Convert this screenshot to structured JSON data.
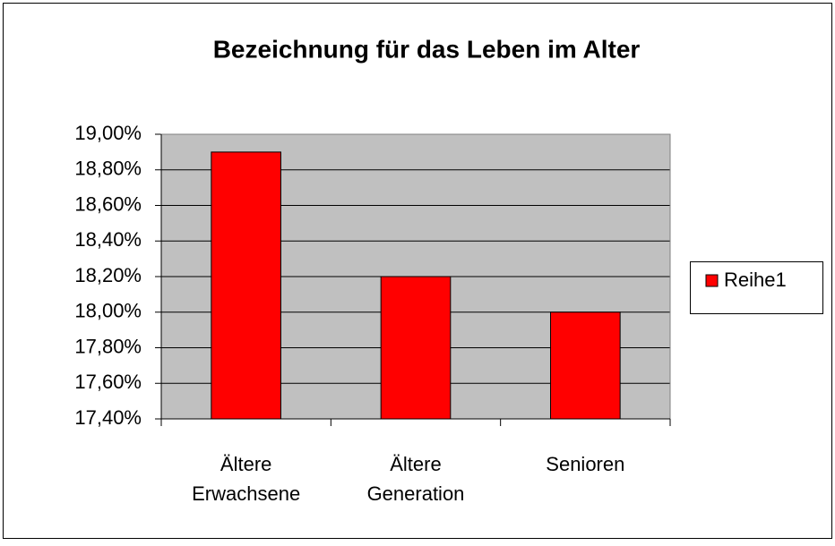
{
  "chart_data": {
    "type": "bar",
    "title": "Bezeichnung für das Leben im Alter",
    "categories": [
      "Ältere Erwachsene",
      "Ältere Generation",
      "Senioren"
    ],
    "series": [
      {
        "name": "Reihe1",
        "color": "#ff0000",
        "values": [
          18.9,
          18.2,
          18.0
        ]
      }
    ],
    "ylim": [
      17.4,
      19.0
    ],
    "yticks": [
      {
        "value": 17.4,
        "label": "17,40%"
      },
      {
        "value": 17.6,
        "label": "17,60%"
      },
      {
        "value": 17.8,
        "label": "17,80%"
      },
      {
        "value": 18.0,
        "label": "18,00%"
      },
      {
        "value": 18.2,
        "label": "18,20%"
      },
      {
        "value": 18.4,
        "label": "18,40%"
      },
      {
        "value": 18.6,
        "label": "18,60%"
      },
      {
        "value": 18.8,
        "label": "18,80%"
      },
      {
        "value": 19.0,
        "label": "19,00%"
      }
    ],
    "grid": true,
    "legend": "right",
    "plot_background": "#c0c0c0"
  }
}
